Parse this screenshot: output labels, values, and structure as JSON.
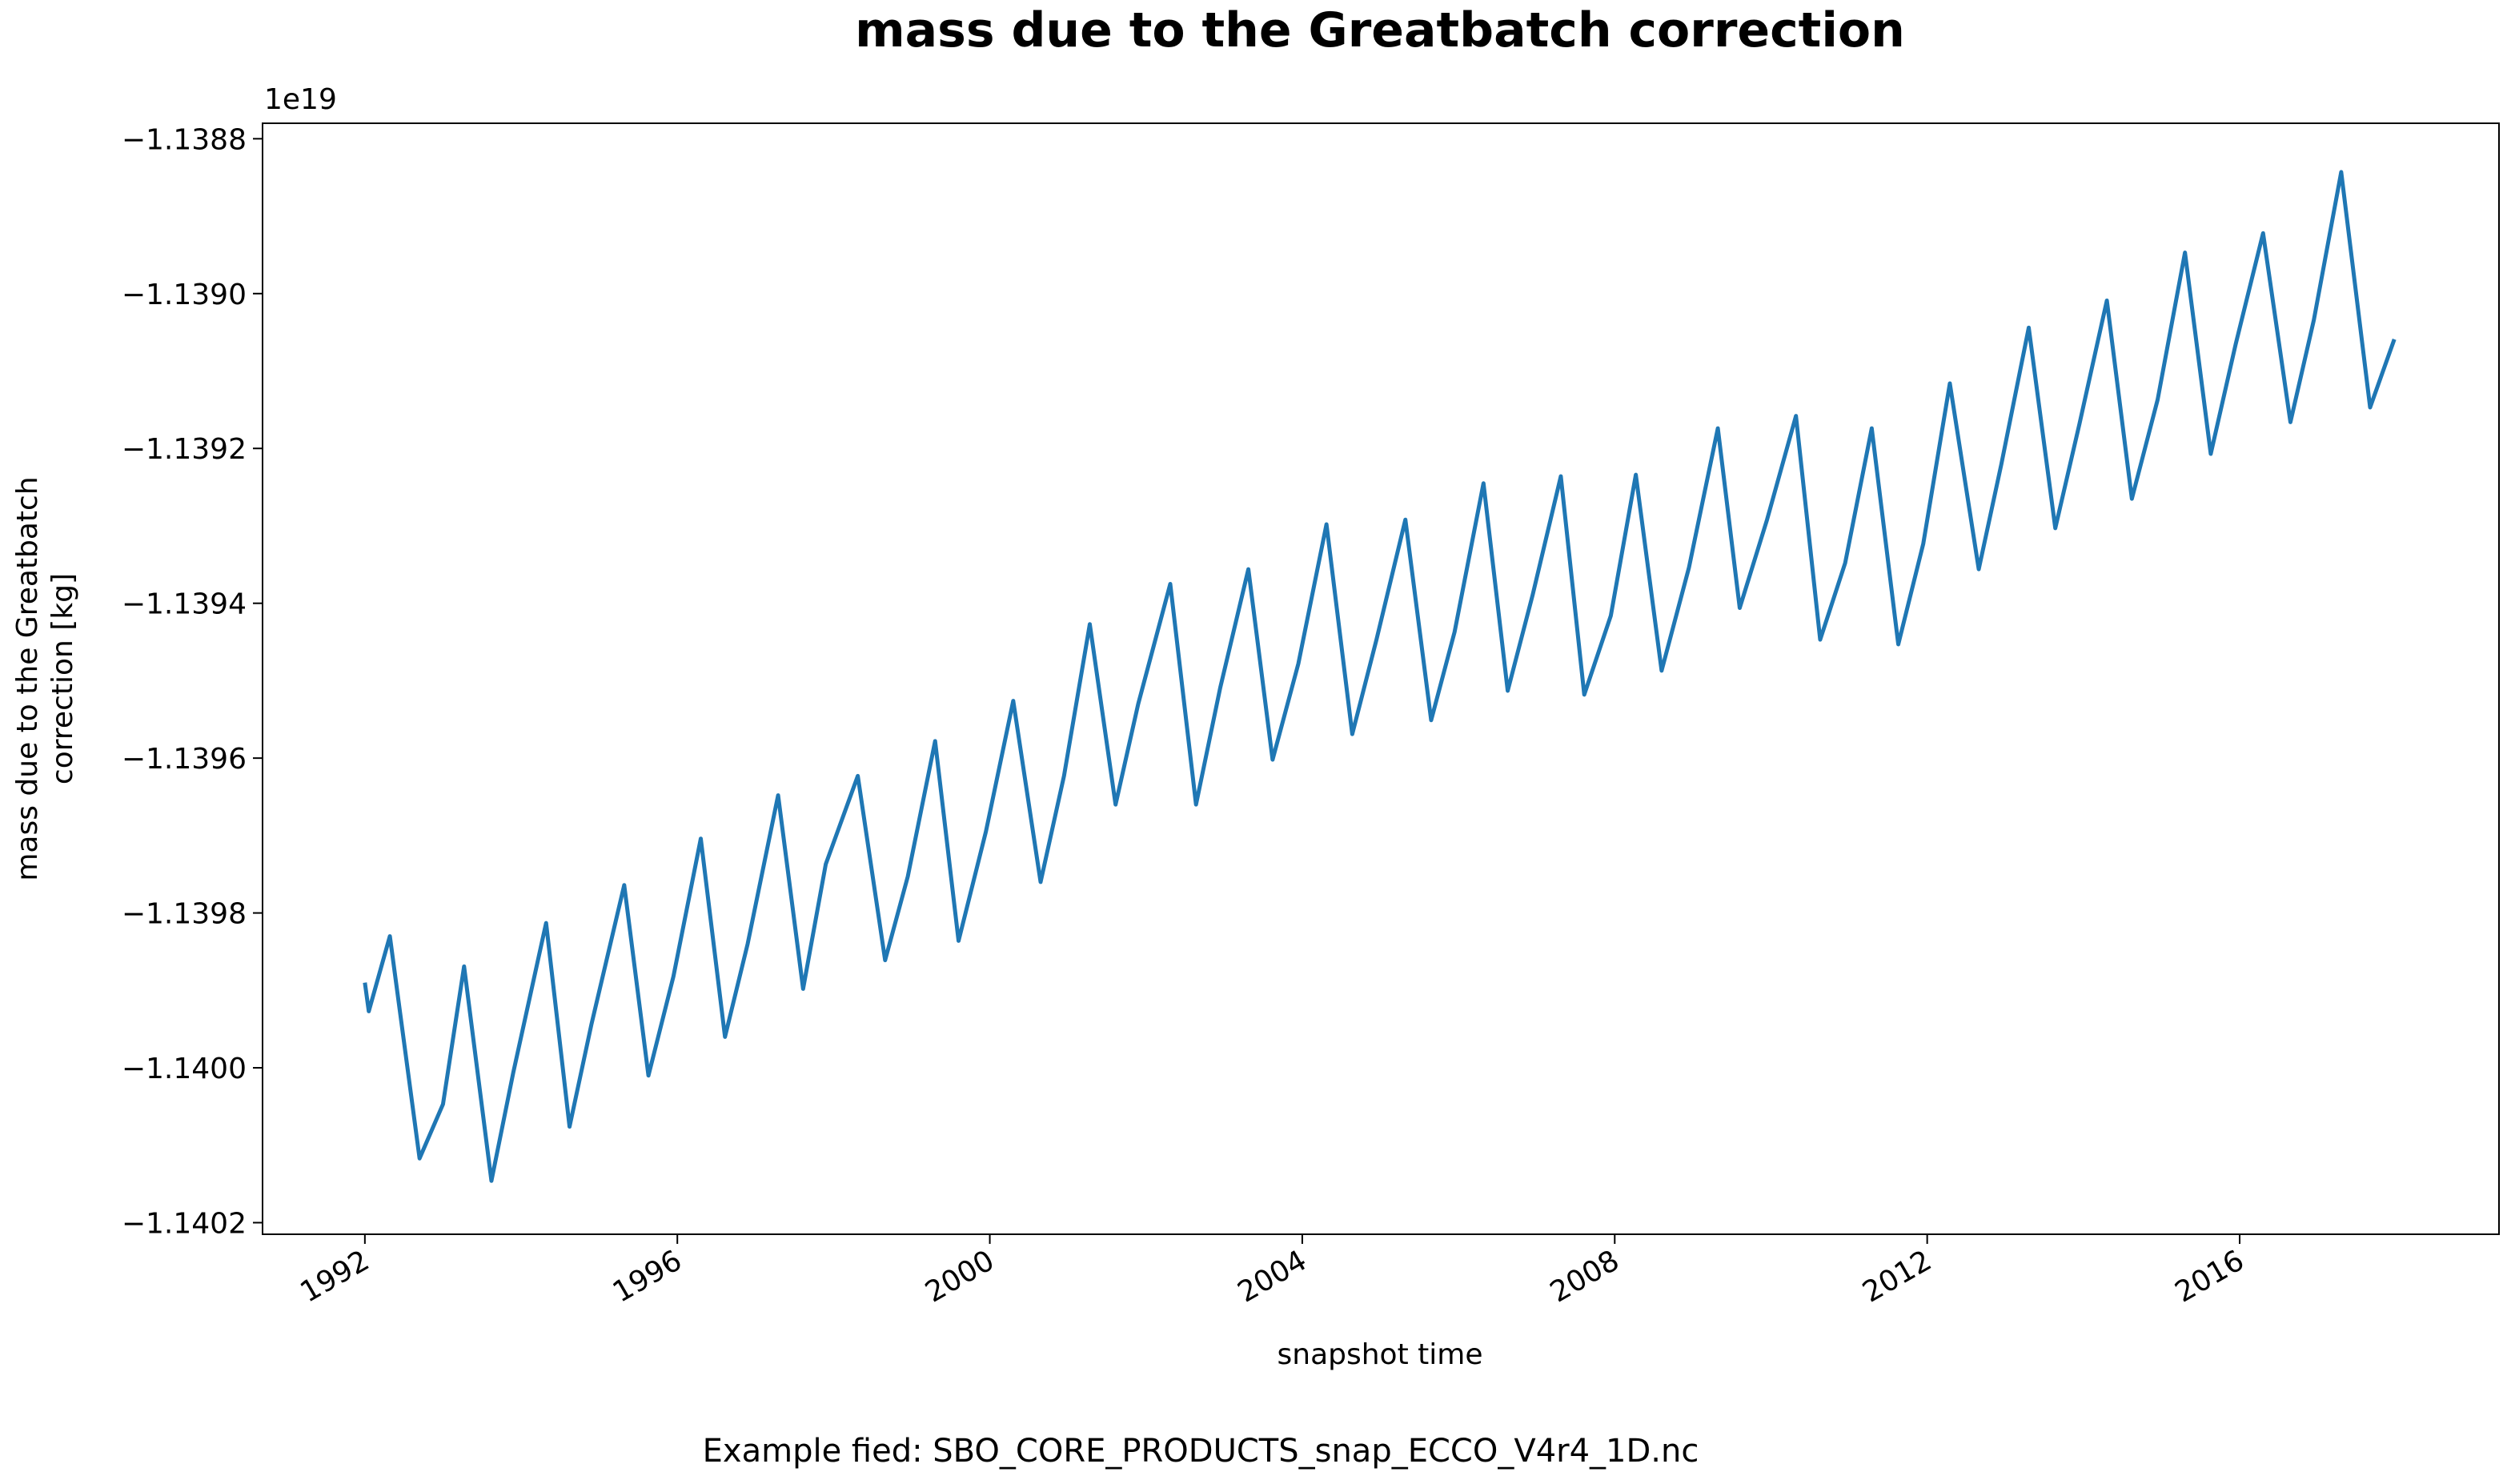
{
  "chart_data": {
    "type": "line",
    "title": "mass due to the Greatbatch correction",
    "xlabel": "snapshot time",
    "ylabel": [
      "mass due to the Greatbatch",
      "correction [kg]"
    ],
    "offset_label": "1e19",
    "caption": "Example fied: SBO_CORE_PRODUCTS_snap_ECCO_V4r4_1D.nc",
    "xlim": [
      1990.69,
      2019.32
    ],
    "xticks": [
      1992,
      1996,
      2000,
      2004,
      2008,
      2012,
      2016
    ],
    "ylim": [
      -1.140215,
      -1.13878
    ],
    "yticks": [
      {
        "value": -1.1388,
        "label": "−1.1388"
      },
      {
        "value": -1.139,
        "label": "−1.1390"
      },
      {
        "value": -1.1392,
        "label": "−1.1392"
      },
      {
        "value": -1.1394,
        "label": "−1.1394"
      },
      {
        "value": -1.1396,
        "label": "−1.1396"
      },
      {
        "value": -1.1398,
        "label": "−1.1398"
      },
      {
        "value": -1.14,
        "label": "−1.1400"
      },
      {
        "value": -1.1402,
        "label": "−1.1402"
      }
    ],
    "grid": false,
    "color": "#1f77b4",
    "x": [
      1992.0,
      1992.05,
      1992.32,
      1992.7,
      1993.0,
      1993.27,
      1993.62,
      1993.9,
      1994.32,
      1994.62,
      1994.9,
      1995.32,
      1995.63,
      1995.95,
      1996.3,
      1996.61,
      1996.9,
      1997.29,
      1997.61,
      1997.9,
      1998.31,
      1998.66,
      1998.95,
      1999.3,
      1999.6,
      1999.95,
      2000.3,
      2000.65,
      2000.95,
      2001.28,
      2001.61,
      2001.9,
      2002.31,
      2002.64,
      2002.95,
      2003.31,
      2003.62,
      2003.95,
      2004.31,
      2004.64,
      2004.95,
      2005.32,
      2005.65,
      2005.95,
      2006.32,
      2006.63,
      2006.95,
      2007.31,
      2007.61,
      2007.95,
      2008.27,
      2008.6,
      2008.95,
      2009.32,
      2009.6,
      2009.95,
      2010.32,
      2010.63,
      2010.95,
      2011.29,
      2011.63,
      2011.95,
      2012.29,
      2012.66,
      2012.95,
      2013.3,
      2013.64,
      2013.95,
      2014.3,
      2014.62,
      2014.95,
      2015.3,
      2015.63,
      2015.95,
      2016.3,
      2016.65,
      2016.95,
      2017.3,
      2017.67,
      2017.98
    ],
    "values": [
      -1.13989,
      -1.139927,
      -1.13983,
      -1.140117,
      -1.140047,
      -1.139869,
      -1.140146,
      -1.140006,
      -1.139813,
      -1.140076,
      -1.139944,
      -1.139764,
      -1.14001,
      -1.139882,
      -1.139704,
      -1.13996,
      -1.13984,
      -1.139648,
      -1.139898,
      -1.139737,
      -1.139623,
      -1.139861,
      -1.139753,
      -1.139578,
      -1.139836,
      -1.139695,
      -1.139526,
      -1.13976,
      -1.139623,
      -1.139427,
      -1.13966,
      -1.13953,
      -1.139375,
      -1.13966,
      -1.139509,
      -1.139356,
      -1.139602,
      -1.139478,
      -1.139298,
      -1.139569,
      -1.139447,
      -1.139292,
      -1.139551,
      -1.139437,
      -1.139245,
      -1.139513,
      -1.139389,
      -1.139236,
      -1.139518,
      -1.139416,
      -1.139234,
      -1.139487,
      -1.139354,
      -1.139174,
      -1.139406,
      -1.139292,
      -1.139158,
      -1.139447,
      -1.139348,
      -1.139174,
      -1.139453,
      -1.139323,
      -1.139116,
      -1.139356,
      -1.13922,
      -1.139044,
      -1.139303,
      -1.139168,
      -1.139009,
      -1.139265,
      -1.139137,
      -1.138947,
      -1.139207,
      -1.139065,
      -1.138922,
      -1.139166,
      -1.139034,
      -1.138843,
      -1.139147,
      -1.139059
    ]
  }
}
